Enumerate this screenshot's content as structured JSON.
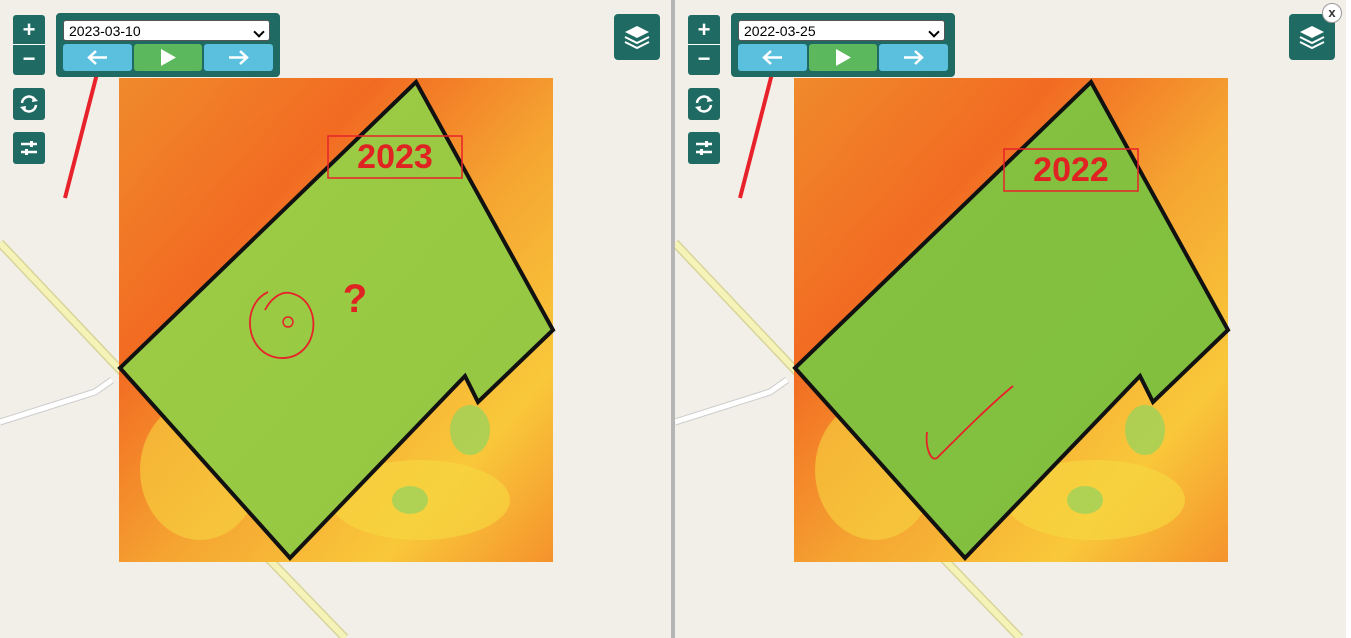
{
  "close_button": "x",
  "panels": [
    {
      "zoom_in": "+",
      "zoom_out": "−",
      "date": "2023-03-10",
      "annotation_label": "2023",
      "annotation_mark": "?"
    },
    {
      "zoom_in": "+",
      "zoom_out": "−",
      "date": "2022-03-25",
      "annotation_label": "2022"
    }
  ]
}
